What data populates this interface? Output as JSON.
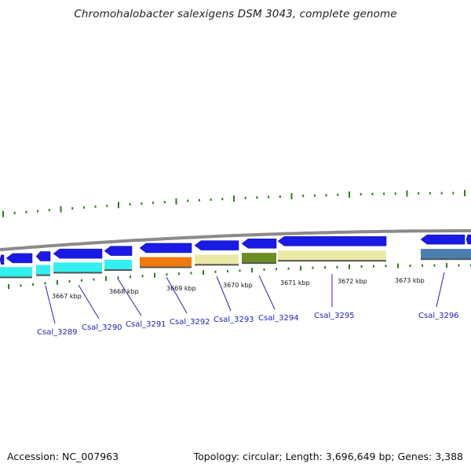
{
  "title": "Chromohalobacter salexigens DSM 3043, complete genome",
  "footer": {
    "accession": "Accession: NC_007963",
    "stats": "Topology: circular; Length: 3,696,649 bp; Genes: 3,388"
  },
  "colors": {
    "gene_arrow": "#1a1ae6",
    "backbone": "#8a8a8a",
    "gc_ticks": "#2e7d1e",
    "label": "#2222bb",
    "cyan_cog": "#33f0f0",
    "orange_cog": "#f07a0a",
    "khaki_cog": "#ece9a6",
    "olive_cog": "#6b8e23",
    "steelblue_cog": "#4a7fb0"
  },
  "kbp_ticks": [
    "3667 kbp",
    "3668 kbp",
    "3669 kbp",
    "3670 kbp",
    "3671 kbp",
    "3672 kbp",
    "3673 kbp"
  ],
  "gene_labels": [
    "Csal_3289",
    "Csal_3290",
    "Csal_3291",
    "Csal_3292",
    "Csal_3293",
    "Csal_3294",
    "Csal_3295",
    "Csal_3296"
  ]
}
